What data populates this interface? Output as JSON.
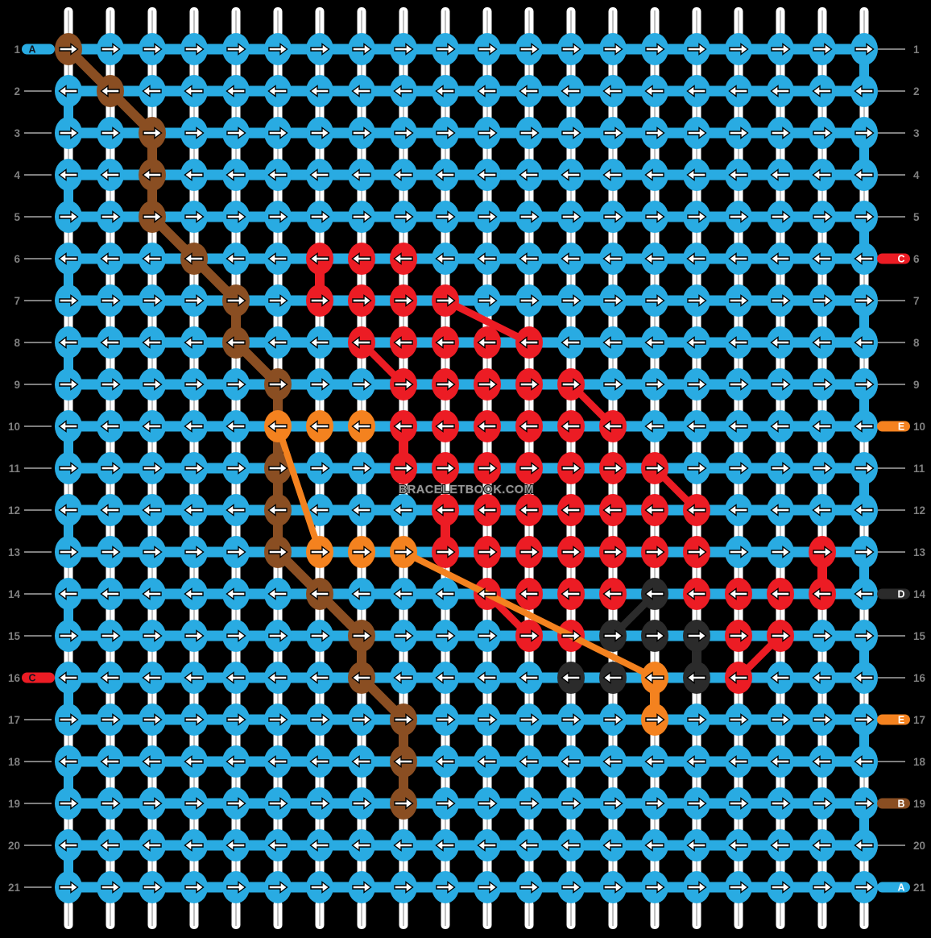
{
  "watermark": "BRACELETBOOK.COM",
  "palette": {
    "b": "#29ABE2",
    "n": "#8A4E22",
    "r": "#EC1C24",
    "o": "#F4821F",
    "k": "#2B2B2B"
  },
  "ui_colors": {
    "background": "#000000",
    "strand_white": "#FFFFFF",
    "strand_core_gray": "#BFBFBF",
    "number_gray": "#7F7F7F",
    "guide_line_gray": "#A8A8A8"
  },
  "arrow_icons": {
    "right": "right-arrow",
    "left": "left-arrow"
  },
  "rows": [
    {
      "num": 1,
      "cells": "nbbbbbbbbbbbbbbbbbbb",
      "left": {
        "letter": "A",
        "color": "b"
      },
      "right": null
    },
    {
      "num": 2,
      "cells": "bnbbbbbbbbbbbbbbbbbb",
      "left": null,
      "right": null
    },
    {
      "num": 3,
      "cells": "bbnbbbbbbbbbbbbbbbbb",
      "left": null,
      "right": null
    },
    {
      "num": 4,
      "cells": "bbnbbbbbbbbbbbbbbbbb",
      "left": null,
      "right": null
    },
    {
      "num": 5,
      "cells": "bbnbbbbbbbbbbbbbbbbb",
      "left": null,
      "right": null
    },
    {
      "num": 6,
      "cells": "bbbnbbrrrbbbbbbbbbbb",
      "left": null,
      "right": {
        "letter": "C",
        "color": "r"
      }
    },
    {
      "num": 7,
      "cells": "bbbbnbrrrrbbbbbbbbbb",
      "left": null,
      "right": null
    },
    {
      "num": 8,
      "cells": "bbbbnbbrrrrrbbbbbbbb",
      "left": null,
      "right": null
    },
    {
      "num": 9,
      "cells": "bbbbbnbbrrrrrbbbbbbb",
      "left": null,
      "right": null
    },
    {
      "num": 10,
      "cells": "bbbbbooorrrrrrbbbbbb",
      "left": null,
      "right": {
        "letter": "E",
        "color": "o"
      }
    },
    {
      "num": 11,
      "cells": "bbbbbnbbrrrrrrrbbbbb",
      "left": null,
      "right": null
    },
    {
      "num": 12,
      "cells": "bbbbbnbbbrrrrrrrbbbb",
      "left": null,
      "right": null
    },
    {
      "num": 13,
      "cells": "bbbbbnooorrrrrrrbbrb",
      "left": null,
      "right": null
    },
    {
      "num": 14,
      "cells": "bbbbbbnbbbrrrrkrrrrb",
      "left": null,
      "right": {
        "letter": "D",
        "color": "k"
      }
    },
    {
      "num": 15,
      "cells": "bbbbbbbnbbbrrkkkrrbb",
      "left": null,
      "right": null
    },
    {
      "num": 16,
      "cells": "bbbbbbbnbbbbkkokrbbb",
      "left": {
        "letter": "C",
        "color": "r"
      },
      "right": null
    },
    {
      "num": 17,
      "cells": "bbbbbbbbnbbbbbobbbbb",
      "left": null,
      "right": {
        "letter": "E",
        "color": "o"
      }
    },
    {
      "num": 18,
      "cells": "bbbbbbbbnbbbbbbbbbbb",
      "left": null,
      "right": null
    },
    {
      "num": 19,
      "cells": "bbbbbbbbnbbbbbbbbbbb",
      "left": null,
      "right": {
        "letter": "B",
        "color": "n"
      }
    },
    {
      "num": 20,
      "cells": "bbbbbbbbbbbbbbbbbbbb",
      "left": null,
      "right": null
    },
    {
      "num": 21,
      "cells": "bbbbbbbbbbbbbbbbbbbb",
      "left": null,
      "right": {
        "letter": "A",
        "color": "b"
      }
    }
  ],
  "vertical_links": [
    {
      "col": 1,
      "after_row": 2,
      "color": "b"
    },
    {
      "col": 1,
      "after_row": 4,
      "color": "b"
    },
    {
      "col": 1,
      "after_row": 6,
      "color": "b"
    },
    {
      "col": 1,
      "after_row": 8,
      "color": "b"
    },
    {
      "col": 1,
      "after_row": 10,
      "color": "b"
    },
    {
      "col": 1,
      "after_row": 12,
      "color": "b"
    },
    {
      "col": 1,
      "after_row": 14,
      "color": "b"
    },
    {
      "col": 1,
      "after_row": 16,
      "color": "b"
    },
    {
      "col": 1,
      "after_row": 18,
      "color": "b"
    },
    {
      "col": 1,
      "after_row": 20,
      "color": "b"
    },
    {
      "col": 20,
      "after_row": 1,
      "color": "b"
    },
    {
      "col": 20,
      "after_row": 3,
      "color": "b"
    },
    {
      "col": 20,
      "after_row": 5,
      "color": "b"
    },
    {
      "col": 20,
      "after_row": 7,
      "color": "b"
    },
    {
      "col": 20,
      "after_row": 9,
      "color": "b"
    },
    {
      "col": 20,
      "after_row": 11,
      "color": "b"
    },
    {
      "col": 20,
      "after_row": 13,
      "color": "b"
    },
    {
      "col": 20,
      "after_row": 15,
      "color": "b"
    },
    {
      "col": 20,
      "after_row": 17,
      "color": "b"
    },
    {
      "col": 20,
      "after_row": 19,
      "color": "b"
    },
    {
      "col": 3,
      "after_row": 3,
      "color": "n"
    },
    {
      "col": 3,
      "after_row": 4,
      "color": "n"
    },
    {
      "col": 5,
      "after_row": 7,
      "color": "n"
    },
    {
      "col": 6,
      "after_row": 9,
      "color": "n"
    },
    {
      "col": 6,
      "after_row": 10,
      "color": "n"
    },
    {
      "col": 6,
      "after_row": 11,
      "color": "n"
    },
    {
      "col": 6,
      "after_row": 12,
      "color": "n"
    },
    {
      "col": 8,
      "after_row": 15,
      "color": "n"
    },
    {
      "col": 9,
      "after_row": 17,
      "color": "n"
    },
    {
      "col": 9,
      "after_row": 18,
      "color": "n"
    },
    {
      "col": 7,
      "after_row": 6,
      "color": "r"
    },
    {
      "col": 9,
      "after_row": 10,
      "color": "r"
    },
    {
      "col": 10,
      "after_row": 12,
      "color": "r"
    },
    {
      "col": 19,
      "after_row": 13,
      "color": "r"
    },
    {
      "col": 15,
      "after_row": 16,
      "color": "o"
    },
    {
      "col": 16,
      "after_row": 15,
      "color": "k"
    }
  ],
  "diagonal_strands": [
    {
      "r1": 1,
      "c1": 1,
      "r2": 2,
      "c2": 2,
      "color": "n"
    },
    {
      "r1": 2,
      "c1": 2,
      "r2": 3,
      "c2": 3,
      "color": "n"
    },
    {
      "r1": 5,
      "c1": 3,
      "r2": 6,
      "c2": 4,
      "color": "n"
    },
    {
      "r1": 6,
      "c1": 4,
      "r2": 7,
      "c2": 5,
      "color": "n"
    },
    {
      "r1": 8,
      "c1": 5,
      "r2": 9,
      "c2": 6,
      "color": "n"
    },
    {
      "r1": 13,
      "c1": 6,
      "r2": 14,
      "c2": 7,
      "color": "n"
    },
    {
      "r1": 14,
      "c1": 7,
      "r2": 15,
      "c2": 8,
      "color": "n"
    },
    {
      "r1": 16,
      "c1": 8,
      "r2": 17,
      "c2": 9,
      "color": "n"
    },
    {
      "r1": 7,
      "c1": 10,
      "r2": 8,
      "c2": 12,
      "color": "r"
    },
    {
      "r1": 8,
      "c1": 8,
      "r2": 9,
      "c2": 9,
      "color": "r"
    },
    {
      "r1": 9,
      "c1": 13,
      "r2": 10,
      "c2": 14,
      "color": "r"
    },
    {
      "r1": 11,
      "c1": 15,
      "r2": 12,
      "c2": 16,
      "color": "r"
    },
    {
      "r1": 14,
      "c1": 11,
      "r2": 15,
      "c2": 12,
      "color": "r"
    },
    {
      "r1": 16,
      "c1": 17,
      "r2": 15,
      "c2": 18,
      "color": "r"
    },
    {
      "r1": 10,
      "c1": 6,
      "r2": 13,
      "c2": 7,
      "color": "o"
    },
    {
      "r1": 13,
      "c1": 9,
      "r2": 16,
      "c2": 15,
      "color": "o"
    },
    {
      "r1": 15,
      "c1": 14,
      "r2": 14,
      "c2": 15,
      "color": "k"
    }
  ]
}
